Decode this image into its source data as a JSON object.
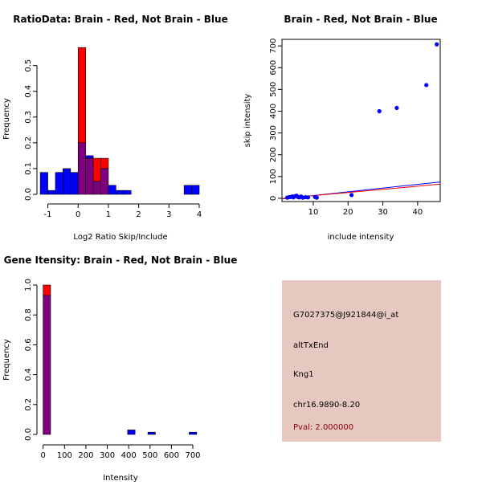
{
  "colors": {
    "red": "#ff0000",
    "blue": "#0000ff",
    "overlap": "#7f007f",
    "panel_bg": "#e6c8c0",
    "pval": "#8b0000"
  },
  "chart_data": [
    {
      "type": "bar",
      "subtype": "histogram-overlay",
      "title": "RatioData: Brain - Red, Not Brain - Blue",
      "xlabel": "Log2 Ratio Skip/Include",
      "ylabel": "Frequency",
      "xlim": [
        -1.2,
        4.0
      ],
      "ylim": [
        0,
        0.58
      ],
      "xticks": [
        -1,
        0,
        1,
        2,
        3,
        4
      ],
      "yticks": [
        0.0,
        0.1,
        0.2,
        0.3,
        0.4,
        0.5
      ],
      "bin_width": 0.25,
      "series": [
        {
          "name": "Brain",
          "color": "red",
          "bins": [
            [
              0.0,
              0.57
            ],
            [
              0.25,
              0.14
            ],
            [
              0.5,
              0.14
            ],
            [
              0.75,
              0.14
            ]
          ]
        },
        {
          "name": "Not Brain",
          "color": "blue",
          "bins": [
            [
              -1.25,
              0.085
            ],
            [
              -1.0,
              0.015
            ],
            [
              -0.75,
              0.085
            ],
            [
              -0.5,
              0.1
            ],
            [
              -0.25,
              0.085
            ],
            [
              0.0,
              0.2
            ],
            [
              0.25,
              0.15
            ],
            [
              0.5,
              0.05
            ],
            [
              0.75,
              0.1
            ],
            [
              1.0,
              0.035
            ],
            [
              1.25,
              0.015
            ],
            [
              1.5,
              0.015
            ],
            [
              3.5,
              0.035
            ],
            [
              3.75,
              0.035
            ]
          ]
        }
      ]
    },
    {
      "type": "scatter",
      "title": "Brain - Red, Not Brain - Blue",
      "xlabel": "include intensity",
      "ylabel": "skip intensity",
      "xlim": [
        1.0,
        46.5
      ],
      "ylim": [
        -15,
        730
      ],
      "xticks": [
        10,
        20,
        30,
        40
      ],
      "yticks": [
        0,
        100,
        200,
        300,
        400,
        500,
        600,
        700
      ],
      "points": [
        [
          2.5,
          3
        ],
        [
          3.0,
          5
        ],
        [
          3.5,
          6
        ],
        [
          4.0,
          8
        ],
        [
          4.3,
          4
        ],
        [
          4.8,
          10
        ],
        [
          5.2,
          12
        ],
        [
          5.6,
          6
        ],
        [
          6.0,
          4
        ],
        [
          6.5,
          8
        ],
        [
          7.0,
          3
        ],
        [
          7.8,
          5
        ],
        [
          8.5,
          4
        ],
        [
          10.5,
          6
        ],
        [
          11.0,
          3
        ],
        [
          21.0,
          15
        ],
        [
          29.0,
          400
        ],
        [
          34.0,
          415
        ],
        [
          42.5,
          520
        ],
        [
          45.5,
          707
        ]
      ],
      "fit_lines": [
        {
          "name": "Not Brain",
          "color": "blue",
          "from": [
            1.0,
            -3
          ],
          "to": [
            46.5,
            75
          ]
        },
        {
          "name": "Brain",
          "color": "red",
          "from": [
            1.0,
            -1
          ],
          "to": [
            46.5,
            65
          ]
        }
      ]
    },
    {
      "type": "bar",
      "subtype": "histogram-overlay",
      "title": "Gene Itensity: Brain - Red, Not Brain - Blue",
      "xlabel": "Intensity",
      "ylabel": "Frequency",
      "xlim": [
        -10,
        730
      ],
      "ylim": [
        0,
        1.0
      ],
      "xticks": [
        0,
        100,
        200,
        300,
        400,
        500,
        600,
        700
      ],
      "yticks": [
        0.0,
        0.2,
        0.4,
        0.6,
        0.8,
        1.0
      ],
      "bin_width": 35,
      "series": [
        {
          "name": "Brain",
          "color": "red",
          "bins": [
            [
              0,
              1.0
            ]
          ]
        },
        {
          "name": "Not Brain",
          "color": "blue",
          "bins": [
            [
              0,
              0.93
            ],
            [
              395,
              0.03
            ],
            [
              490,
              0.015
            ],
            [
              683,
              0.015
            ]
          ]
        }
      ]
    }
  ],
  "info": {
    "probe": "G7027375@J921844@i_at",
    "event": "altTxEnd",
    "gene": "Kng1",
    "location": "chr16.9890-8.20",
    "pval": "Pval: 2.000000"
  }
}
